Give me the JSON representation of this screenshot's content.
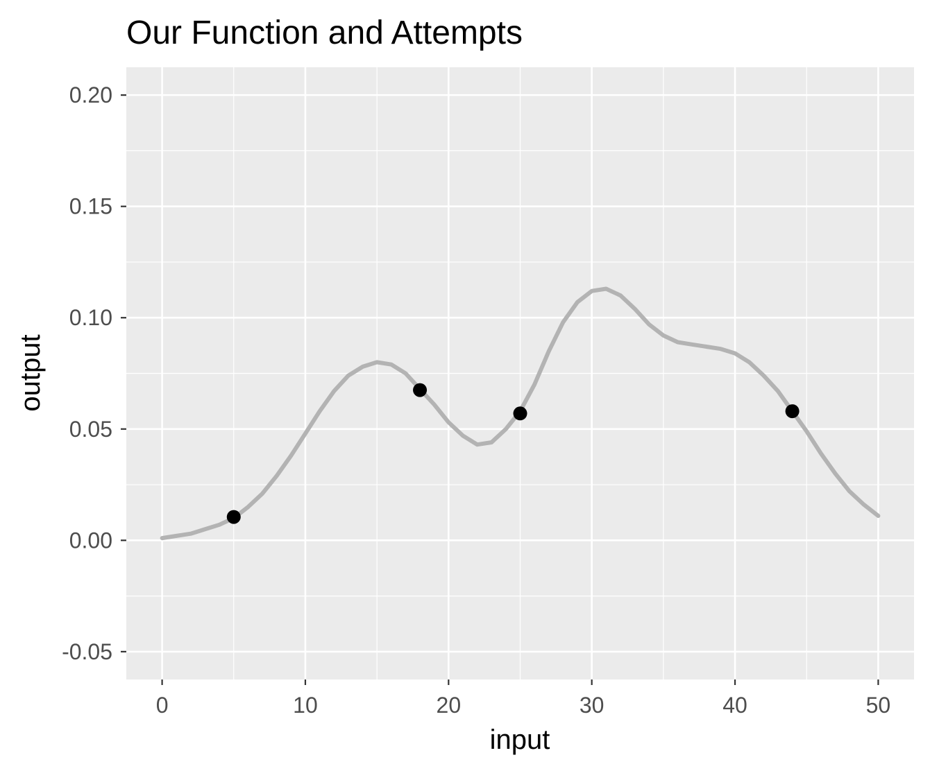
{
  "chart_data": {
    "type": "line",
    "title": "Our Function and Attempts",
    "xlabel": "input",
    "ylabel": "output",
    "xlim": [
      -2.5,
      52.5
    ],
    "ylim": [
      -0.0625,
      0.2125
    ],
    "x_ticks": [
      0,
      10,
      20,
      30,
      40,
      50
    ],
    "x_tick_labels": [
      "0",
      "10",
      "20",
      "30",
      "40",
      "50"
    ],
    "y_ticks": [
      -0.05,
      0.0,
      0.05,
      0.1,
      0.15,
      0.2
    ],
    "y_tick_labels": [
      "-0.05",
      "0.00",
      "0.05",
      "0.10",
      "0.15",
      "0.20"
    ],
    "x_minor": [
      5,
      15,
      25,
      35,
      45
    ],
    "y_minor": [
      -0.025,
      0.025,
      0.075,
      0.125,
      0.175
    ],
    "grid": true,
    "panel_background": "#ebebeb",
    "grid_color": "#ffffff",
    "series": [
      {
        "kind": "line",
        "color": "#b3b3b3",
        "x": [
          0,
          1,
          2,
          3,
          4,
          5,
          6,
          7,
          8,
          9,
          10,
          11,
          12,
          13,
          14,
          15,
          16,
          17,
          18,
          19,
          20,
          21,
          22,
          23,
          24,
          25,
          26,
          27,
          28,
          29,
          30,
          31,
          32,
          33,
          34,
          35,
          36,
          37,
          38,
          39,
          40,
          41,
          42,
          43,
          44,
          45,
          46,
          47,
          48,
          49,
          50
        ],
        "y": [
          0.001,
          0.002,
          0.003,
          0.005,
          0.007,
          0.01,
          0.015,
          0.021,
          0.029,
          0.038,
          0.048,
          0.058,
          0.067,
          0.074,
          0.078,
          0.08,
          0.079,
          0.075,
          0.068,
          0.061,
          0.053,
          0.047,
          0.043,
          0.044,
          0.05,
          0.058,
          0.07,
          0.085,
          0.098,
          0.107,
          0.112,
          0.113,
          0.11,
          0.104,
          0.097,
          0.092,
          0.089,
          0.088,
          0.087,
          0.086,
          0.084,
          0.08,
          0.074,
          0.067,
          0.058,
          0.049,
          0.039,
          0.03,
          0.022,
          0.016,
          0.011
        ]
      },
      {
        "kind": "points",
        "color": "#000000",
        "x": [
          5,
          18,
          25,
          44
        ],
        "y": [
          0.0105,
          0.0675,
          0.057,
          0.058
        ]
      }
    ]
  }
}
